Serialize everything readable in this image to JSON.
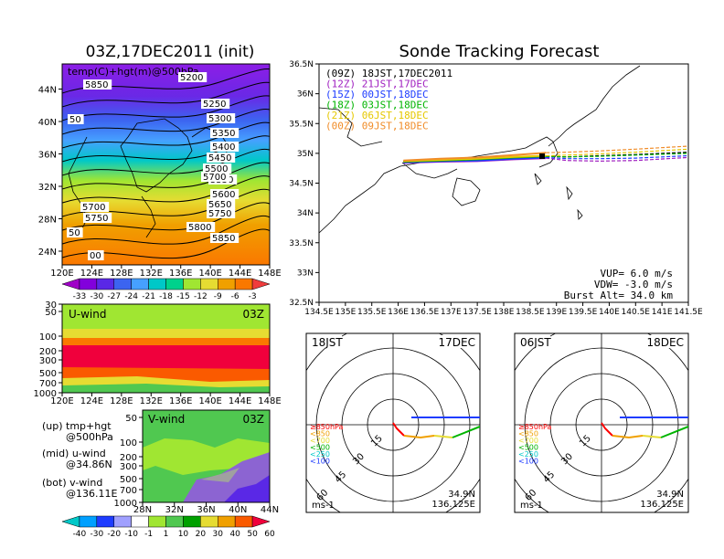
{
  "left_title": "03Z,17DEC2011 (init)",
  "right_title": "Sonde Tracking Forecast",
  "map_panel": {
    "label": "temp(C)+hgt(m)@500hPa",
    "x_ticks": [
      "120E",
      "124E",
      "128E",
      "132E",
      "136E",
      "140E",
      "144E",
      "148E"
    ],
    "y_ticks": [
      "24N",
      "28N",
      "32N",
      "36N",
      "40N",
      "44N"
    ],
    "contour_labels": [
      "5200",
      "5250",
      "5300",
      "5350",
      "5400",
      "5450",
      "5500",
      "5550",
      "5600",
      "5650",
      "5700",
      "5750",
      "5800",
      "5850",
      "5700",
      "5750",
      "5850",
      "50",
      "50",
      "00"
    ],
    "colorbar_labels": [
      "-33",
      "-30",
      "-27",
      "-24",
      "-21",
      "-18",
      "-15",
      "-12",
      "-9",
      "-6",
      "-3"
    ],
    "colorbar_colors": [
      "#a000c8",
      "#8200dc",
      "#5a28e6",
      "#3c64f0",
      "#46a0ff",
      "#00c8c8",
      "#00d28c",
      "#a0e632",
      "#e6dc32",
      "#f0a000",
      "#fa7800",
      "#f03c3c"
    ]
  },
  "uwind_panel": {
    "label": "U-wind",
    "time": "03Z",
    "y_ticks": [
      "30",
      "50",
      "100",
      "200",
      "300",
      "500",
      "700",
      "1000"
    ],
    "x_ticks": [
      "120E",
      "124E",
      "128E",
      "132E",
      "136E",
      "140E",
      "144E",
      "148E"
    ]
  },
  "vwind_panel": {
    "label": "V-wind",
    "time": "03Z",
    "y_ticks": [
      "50",
      "100",
      "200",
      "300",
      "500",
      "700",
      "1000"
    ],
    "x_ticks": [
      "28N",
      "32N",
      "36N",
      "40N",
      "44N"
    ]
  },
  "legend_text": {
    "up1": "(up) tmp+hgt",
    "up2": "@500hPa",
    "mid1": "(mid) u-wind",
    "mid2": "@34.86N",
    "bot1": "(bot) v-wind",
    "bot2": "@136.11E"
  },
  "wind_colorbar_labels": [
    "-40",
    "-30",
    "-20",
    "-10",
    "-1",
    "1",
    "10",
    "20",
    "30",
    "40",
    "50",
    "60"
  ],
  "wind_colorbar_colors": [
    "#00c8c8",
    "#00a0ff",
    "#1e3cff",
    "#a0a0ff",
    "#ffffff",
    "#a0e632",
    "#50c850",
    "#00a000",
    "#e6dc32",
    "#f0a000",
    "#fa5a00",
    "#f0003c"
  ],
  "chart_data": {
    "type": "line",
    "title": "Sonde Tracking Forecast",
    "xlim": [
      134.5,
      141.5
    ],
    "ylim": [
      32.5,
      36.5
    ],
    "x_ticks": [
      "134.5E",
      "135E",
      "135.5E",
      "136E",
      "136.5E",
      "137E",
      "137.5E",
      "138E",
      "138.5E",
      "139E",
      "139.5E",
      "140E",
      "140.5E",
      "141E",
      "141.5E"
    ],
    "y_ticks": [
      "32.5N",
      "33N",
      "33.5N",
      "34N",
      "34.5N",
      "35N",
      "35.5N",
      "36N",
      "36.5N"
    ],
    "series": [
      {
        "name": "(09Z)  18JST,17DEC2011",
        "color": "#000000",
        "x": [
          136.1,
          136.8,
          137.5,
          138.2,
          138.8,
          139.2,
          139.8,
          140.5,
          141.5
        ],
        "y": [
          34.86,
          34.88,
          34.9,
          34.93,
          34.95,
          34.94,
          34.96,
          34.98,
          35.02
        ]
      },
      {
        "name": "(12Z)  21JST,17DEC",
        "color": "#a020c0",
        "x": [
          136.1,
          136.8,
          137.5,
          138.2,
          138.8,
          139.2,
          139.8,
          140.5,
          141.5
        ],
        "y": [
          34.84,
          34.86,
          34.87,
          34.9,
          34.92,
          34.88,
          34.87,
          34.88,
          34.93
        ]
      },
      {
        "name": "(15Z)  00JST,18DEC",
        "color": "#1e3cff",
        "x": [
          136.1,
          136.8,
          137.5,
          138.2,
          138.8,
          139.2,
          139.8,
          140.5,
          141.5
        ],
        "y": [
          34.85,
          34.87,
          34.88,
          34.91,
          34.93,
          34.91,
          34.91,
          34.92,
          34.96
        ]
      },
      {
        "name": "(18Z)  03JST,18DEC",
        "color": "#00b400",
        "x": [
          136.1,
          136.8,
          137.5,
          138.2,
          138.8,
          139.2,
          139.8,
          140.5,
          141.5
        ],
        "y": [
          34.86,
          34.88,
          34.9,
          34.93,
          34.95,
          34.94,
          34.95,
          34.97,
          35.0
        ]
      },
      {
        "name": "(21Z)  06JST,18DEC",
        "color": "#e6c800",
        "x": [
          136.1,
          136.8,
          137.5,
          138.2,
          138.8,
          139.2,
          139.8,
          140.5,
          141.5
        ],
        "y": [
          34.87,
          34.89,
          34.91,
          34.94,
          34.96,
          34.97,
          34.99,
          35.02,
          35.07
        ]
      },
      {
        "name": "(00Z)  09JST,18DEC",
        "color": "#f08c28",
        "x": [
          136.1,
          136.8,
          137.5,
          138.2,
          138.8,
          139.2,
          139.8,
          140.5,
          141.5
        ],
        "y": [
          34.88,
          34.91,
          34.93,
          34.97,
          35.01,
          35.02,
          35.04,
          35.07,
          35.12
        ]
      }
    ],
    "annotations": [
      "VUP=  6.0  m/s",
      "VDW=  -3.0  m/s",
      "Burst Alt=  34.0  km"
    ]
  },
  "hodographs": [
    {
      "left": "18JST",
      "right": "17DEC",
      "coord1": "34.9N",
      "coord2": "136.125E",
      "unit": "ms-1"
    },
    {
      "left": "06JST",
      "right": "18DEC",
      "coord1": "34.9N",
      "coord2": "136.125E",
      "unit": "ms-1"
    }
  ],
  "hodo_legend": [
    {
      "text": "≥850hPa",
      "color": "#ff0000"
    },
    {
      "text": "<850",
      "color": "#f0a000"
    },
    {
      "text": "<700",
      "color": "#e6dc32"
    },
    {
      "text": "<500",
      "color": "#00b400"
    },
    {
      "text": "<250",
      "color": "#00c8c8"
    },
    {
      "text": "<100",
      "color": "#1e3cff"
    }
  ],
  "ring_labels": [
    "15",
    "30",
    "45",
    "60"
  ]
}
